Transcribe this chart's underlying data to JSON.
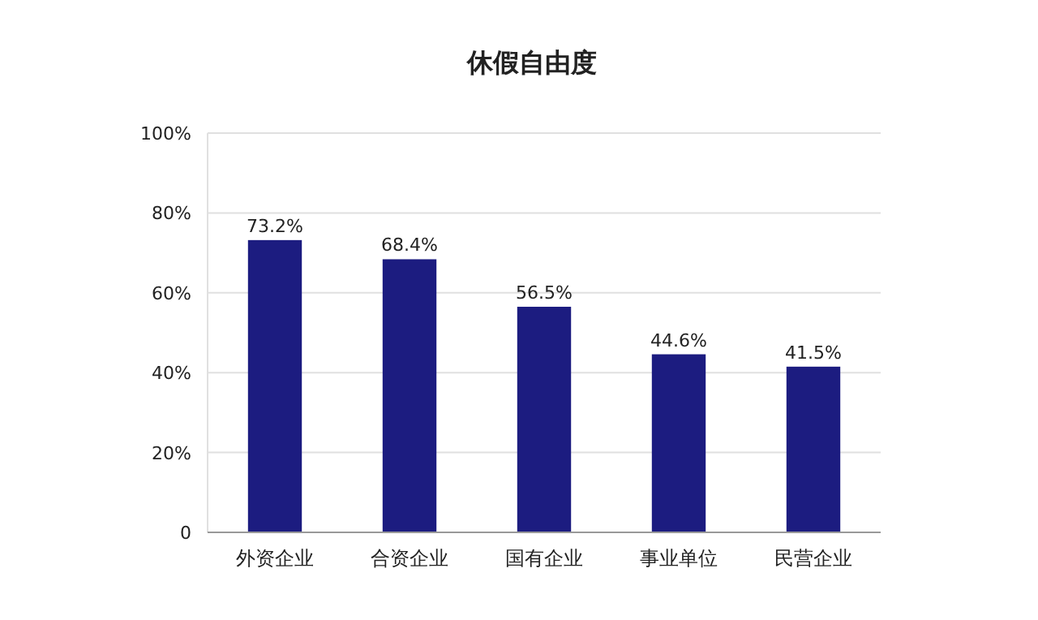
{
  "chart_data": {
    "type": "bar",
    "title": "休假自由度",
    "categories": [
      "外资企业",
      "合资企业",
      "国有企业",
      "事业单位",
      "民营企业"
    ],
    "values": [
      73.2,
      68.4,
      56.5,
      44.6,
      41.5
    ],
    "value_labels": [
      "73.2%",
      "68.4%",
      "56.5%",
      "44.6%",
      "41.5%"
    ],
    "color": "#1c1c80",
    "ylim": [
      0,
      100
    ],
    "yticks": [
      0,
      {
        "value": 20,
        "label": "20%"
      },
      {
        "value": 40,
        "label": "40%"
      },
      {
        "value": 60,
        "label": "60%"
      },
      {
        "value": 80,
        "label": "80%"
      },
      {
        "value": 100,
        "label": "100%"
      }
    ],
    "grid": "y"
  }
}
